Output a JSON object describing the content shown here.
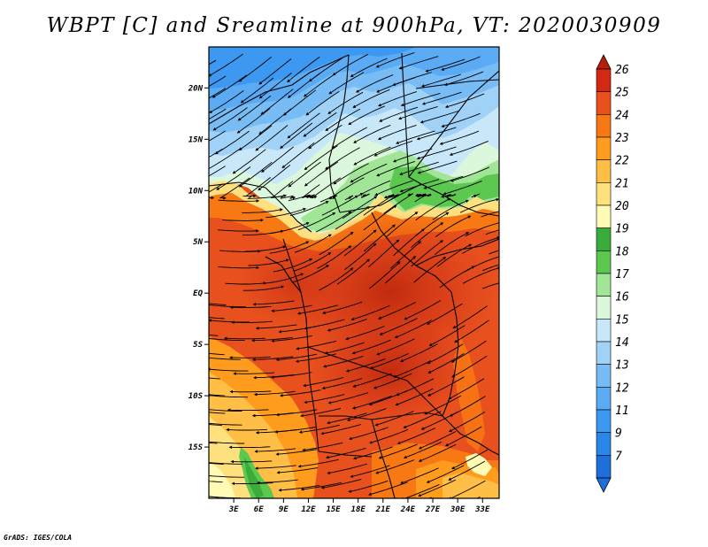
{
  "title": "WBPT [C] and Sreamline at 900hPa, VT: 2020030909",
  "footer": "GrADS: IGES/COLA",
  "map": {
    "variable": "WBPT",
    "units": "C",
    "level": "900hPa",
    "valid_time": "2020030909",
    "lon_range": [
      0,
      35
    ],
    "lat_range": [
      -20,
      24
    ],
    "lon_ticks": [
      {
        "value": 3,
        "label": "3E"
      },
      {
        "value": 6,
        "label": "6E"
      },
      {
        "value": 9,
        "label": "9E"
      },
      {
        "value": 12,
        "label": "12E"
      },
      {
        "value": 15,
        "label": "15E"
      },
      {
        "value": 18,
        "label": "18E"
      },
      {
        "value": 21,
        "label": "21E"
      },
      {
        "value": 24,
        "label": "24E"
      },
      {
        "value": 27,
        "label": "27E"
      },
      {
        "value": 30,
        "label": "30E"
      },
      {
        "value": 33,
        "label": "33E"
      }
    ],
    "lat_ticks": [
      {
        "value": 20,
        "label": "20N"
      },
      {
        "value": 15,
        "label": "15N"
      },
      {
        "value": 10,
        "label": "10N"
      },
      {
        "value": 5,
        "label": "5N"
      },
      {
        "value": 0,
        "label": "EQ"
      },
      {
        "value": -5,
        "label": "5S"
      },
      {
        "value": -10,
        "label": "10S"
      },
      {
        "value": -15,
        "label": "15S"
      }
    ]
  },
  "colorbar": {
    "levels": [
      {
        "label": "7",
        "color": "#1e6edc"
      },
      {
        "label": "9",
        "color": "#2a86e8"
      },
      {
        "label": "11",
        "color": "#3c98f0"
      },
      {
        "label": "12",
        "color": "#5aaaf4"
      },
      {
        "label": "13",
        "color": "#78bcf6"
      },
      {
        "label": "14",
        "color": "#a0d2f8"
      },
      {
        "label": "15",
        "color": "#c8e8fa"
      },
      {
        "label": "16",
        "color": "#dcf8dc"
      },
      {
        "label": "17",
        "color": "#a0e696"
      },
      {
        "label": "18",
        "color": "#5cc850"
      },
      {
        "label": "19",
        "color": "#3aac3a"
      },
      {
        "label": "20",
        "color": "#fffab4"
      },
      {
        "label": "21",
        "color": "#ffe07e"
      },
      {
        "label": "22",
        "color": "#ffbe46"
      },
      {
        "label": "23",
        "color": "#ff9c1e"
      },
      {
        "label": "24",
        "color": "#f87814"
      },
      {
        "label": "25",
        "color": "#e8501e"
      },
      {
        "label": "26",
        "color": "#d22814"
      }
    ],
    "top_triangle_color": "#b41e0a",
    "bottom_triangle_color": "#1e6edc"
  }
}
